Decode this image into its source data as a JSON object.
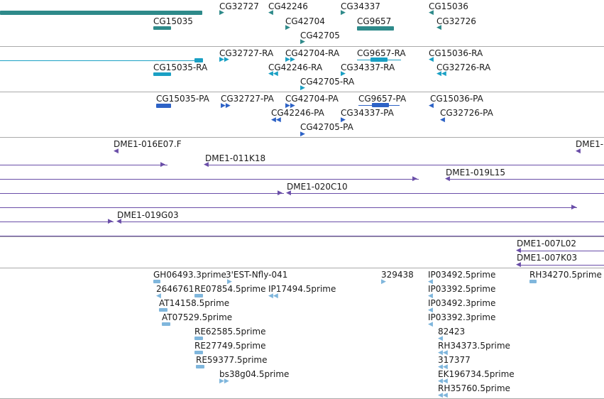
{
  "colors": {
    "gene": "#2e8a8a",
    "mrna": "#1aa0c4",
    "protein": "#2d62c6",
    "clone": "#6a4ea8",
    "est": "#7fb6dc",
    "separator": "#a0a0a0"
  },
  "tracks": {
    "genes": [
      "CG15035",
      "CG32727",
      "CG42246",
      "CG42704",
      "CG42705",
      "CG34337",
      "CG9657",
      "CG15036",
      "CG32726"
    ],
    "transcripts": [
      "CG15035-RA",
      "CG32727-RA",
      "CG42246-RA",
      "CG42704-RA",
      "CG42705-RA",
      "CG9657-RA",
      "CG34337-RA",
      "CG15036-RA",
      "CG32726-RA"
    ],
    "proteins": [
      "CG15035-PA",
      "CG32727-PA",
      "CG42246-PA",
      "CG42704-PA",
      "CG42705-PA",
      "CG9657-PA",
      "CG34337-PA",
      "CG15036-PA",
      "CG32726-PA"
    ],
    "clones": [
      "DME1-016E07.F",
      "DME1-",
      "DME1-011K18",
      "DME1-019L15",
      "DME1-020C10",
      "DME1-019G03"
    ],
    "clones2": [
      "DME1-007L02",
      "DME1-007K03"
    ],
    "ests": [
      "GH06493.3prime",
      "3'EST-Nfly-041",
      "329438",
      "IP03492.5prime",
      "RH34270.5prime",
      "2646761",
      "RE07854.5prime",
      "IP17494.5prime",
      "IP03392.5prime",
      "AT14158.5prime",
      "IP03492.3prime",
      "AT07529.5prime",
      "IP03392.3prime",
      "RE62585.5prime",
      "82423",
      "RE27749.5prime",
      "RH34373.5prime",
      "RE59377.5prime",
      "317377",
      "bs38g04.5prime",
      "EK196734.5prime",
      "RH35760.5prime"
    ]
  }
}
